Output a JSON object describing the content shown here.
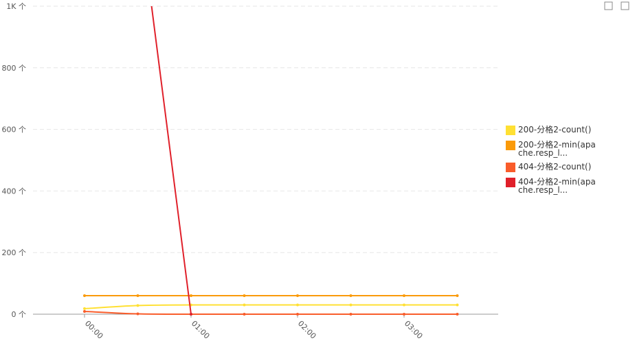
{
  "chart_data": {
    "type": "line",
    "categories": [
      "00:00",
      null,
      "01:00",
      null,
      "02:00",
      null,
      "03:00",
      null
    ],
    "ylim": [
      0,
      1000
    ],
    "yticks": [
      {
        "value": 0,
        "label": "0 个"
      },
      {
        "value": 200,
        "label": "200 个"
      },
      {
        "value": 400,
        "label": "400 个"
      },
      {
        "value": 600,
        "label": "600 个"
      },
      {
        "value": 800,
        "label": "800 个"
      },
      {
        "value": 1000,
        "label": "1K 个"
      }
    ],
    "grid": true,
    "legend": "right",
    "series": [
      {
        "name": "200-分格2-count()",
        "color": "#ffe033",
        "values": [
          18,
          28,
          30,
          30,
          30,
          30,
          30,
          30
        ]
      },
      {
        "name": "200-分格2-min(apache.resp_l...",
        "color": "#fa9a0a",
        "values": [
          60,
          60,
          60,
          60,
          60,
          60,
          60,
          60
        ]
      },
      {
        "name": "404-分格2-count()",
        "color": "#f95c2a",
        "values": [
          9,
          1,
          0,
          0,
          0,
          0,
          0,
          0
        ]
      },
      {
        "name": "404-分格2-min(apache.resp_l...",
        "color": "#e0202a",
        "values": [
          null,
          1350,
          0,
          null,
          null,
          null,
          null,
          null
        ]
      }
    ]
  }
}
